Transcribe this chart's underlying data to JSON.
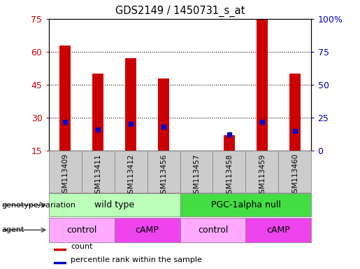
{
  "title": "GDS2149 / 1450731_s_at",
  "samples": [
    "GSM113409",
    "GSM113411",
    "GSM113412",
    "GSM113456",
    "GSM113457",
    "GSM113458",
    "GSM113459",
    "GSM113460"
  ],
  "counts": [
    63,
    50,
    57,
    48,
    0,
    22,
    75,
    50
  ],
  "percentile_ranks": [
    22,
    16,
    20,
    18,
    0,
    12,
    22,
    15
  ],
  "ylim_left": [
    15,
    75
  ],
  "ylim_right": [
    0,
    100
  ],
  "yticks_left": [
    15,
    30,
    45,
    60,
    75
  ],
  "yticks_right": [
    0,
    25,
    50,
    75,
    100
  ],
  "ytick_labels_right": [
    "0",
    "25",
    "50",
    "75",
    "100%"
  ],
  "grid_yticks": [
    30,
    45,
    60
  ],
  "bar_color": "#cc0000",
  "percentile_color": "#0000cc",
  "genotype_groups": [
    {
      "label": "wild type",
      "start": 0,
      "end": 4,
      "color": "#bbffbb"
    },
    {
      "label": "PGC-1alpha null",
      "start": 4,
      "end": 8,
      "color": "#44dd44"
    }
  ],
  "agent_groups": [
    {
      "label": "control",
      "start": 0,
      "end": 2,
      "color": "#ffaaff"
    },
    {
      "label": "cAMP",
      "start": 2,
      "end": 4,
      "color": "#ee44ee"
    },
    {
      "label": "control",
      "start": 4,
      "end": 6,
      "color": "#ffaaff"
    },
    {
      "label": "cAMP",
      "start": 6,
      "end": 8,
      "color": "#ee44ee"
    }
  ],
  "legend_items": [
    {
      "label": "count",
      "color": "#cc0000"
    },
    {
      "label": "percentile rank within the sample",
      "color": "#0000cc"
    }
  ],
  "bar_width": 0.35,
  "left_label_color": "#cc0000",
  "right_label_color": "#0000bb",
  "sample_box_color": "#cccccc",
  "sample_box_edge": "#888888"
}
